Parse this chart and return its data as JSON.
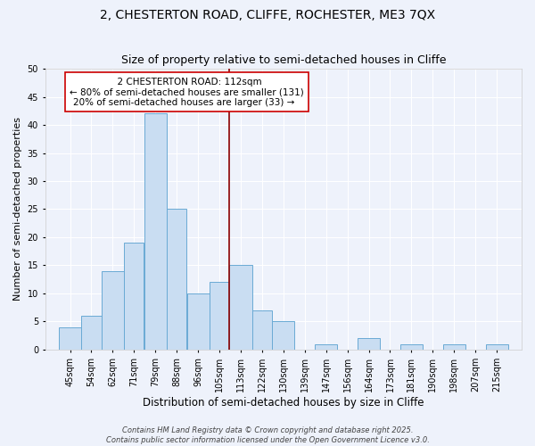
{
  "title_line1": "2, CHESTERTON ROAD, CLIFFE, ROCHESTER, ME3 7QX",
  "title_line2": "Size of property relative to semi-detached houses in Cliffe",
  "xlabel": "Distribution of semi-detached houses by size in Cliffe",
  "ylabel": "Number of semi-detached properties",
  "bar_labels": [
    "45sqm",
    "54sqm",
    "62sqm",
    "71sqm",
    "79sqm",
    "88sqm",
    "96sqm",
    "105sqm",
    "113sqm",
    "122sqm",
    "130sqm",
    "139sqm",
    "147sqm",
    "156sqm",
    "164sqm",
    "173sqm",
    "181sqm",
    "190sqm",
    "198sqm",
    "207sqm",
    "215sqm"
  ],
  "bar_values": [
    4,
    6,
    14,
    19,
    42,
    25,
    10,
    12,
    15,
    7,
    5,
    0,
    1,
    0,
    2,
    0,
    1,
    0,
    1,
    0,
    1
  ],
  "bin_edges": [
    45,
    54,
    62,
    71,
    79,
    88,
    96,
    105,
    113,
    122,
    130,
    139,
    147,
    156,
    164,
    173,
    181,
    190,
    198,
    207,
    215,
    224
  ],
  "bar_color": "#c9ddf2",
  "bar_edge_color": "#6aaad4",
  "vline_x": 113,
  "vline_color": "#8B0000",
  "annotation_title": "2 CHESTERTON ROAD: 112sqm",
  "annotation_line1": "← 80% of semi-detached houses are smaller (131)",
  "annotation_line2": "20% of semi-detached houses are larger (33) →",
  "annotation_box_facecolor": "#ffffff",
  "annotation_box_edgecolor": "#cc0000",
  "ylim": [
    0,
    50
  ],
  "yticks": [
    0,
    5,
    10,
    15,
    20,
    25,
    30,
    35,
    40,
    45,
    50
  ],
  "footer_line1": "Contains HM Land Registry data © Crown copyright and database right 2025.",
  "footer_line2": "Contains public sector information licensed under the Open Government Licence v3.0.",
  "bg_color": "#eef2fb",
  "grid_color": "#ffffff",
  "title1_fontsize": 10,
  "title2_fontsize": 9,
  "xlabel_fontsize": 8.5,
  "ylabel_fontsize": 8,
  "tick_fontsize": 7,
  "footer_fontsize": 6,
  "annot_title_fontsize": 8,
  "annot_body_fontsize": 7.5
}
